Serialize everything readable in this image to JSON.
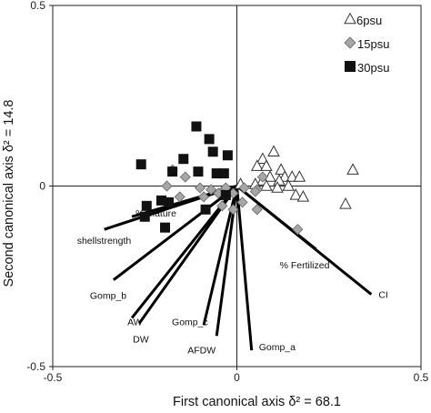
{
  "chart_data": {
    "type": "scatter",
    "xlabel": "First canonical axis  δ² = 68.1",
    "ylabel": "Second canonical axis  δ² = 14.8",
    "xlim": [
      -0.5,
      0.5
    ],
    "ylim": [
      -0.5,
      0.5
    ],
    "x_ticks": [
      -0.5,
      0,
      0.5
    ],
    "y_ticks": [
      -0.5,
      0,
      0.5
    ],
    "x_tick_labels": [
      "-0.5",
      "0",
      "0.5"
    ],
    "y_tick_labels": [
      "-0.5",
      "0",
      "0.5"
    ],
    "grid": false,
    "legend_position": "top-right",
    "series": [
      {
        "name": "6psu",
        "marker": "triangle-open",
        "color": "#ffffff",
        "points": [
          [
            0.1,
            0.095
          ],
          [
            0.07,
            0.075
          ],
          [
            0.055,
            0.055
          ],
          [
            0.08,
            0.055
          ],
          [
            0.09,
            0.025
          ],
          [
            0.12,
            0.045
          ],
          [
            0.13,
            0.025
          ],
          [
            0.15,
            0.025
          ],
          [
            0.17,
            0.025
          ],
          [
            0.07,
            0.015
          ],
          [
            0.115,
            0.015
          ],
          [
            0.01,
            0.005
          ],
          [
            0.05,
            0.005
          ],
          [
            0.08,
            0.0
          ],
          [
            0.14,
            0.0
          ],
          [
            0.11,
            -0.005
          ],
          [
            0.16,
            -0.025
          ],
          [
            0.18,
            -0.03
          ],
          [
            0.315,
            0.045
          ],
          [
            0.295,
            -0.05
          ]
        ]
      },
      {
        "name": "15psu",
        "marker": "diamond",
        "color": "#a6a6a6",
        "points": [
          [
            -0.175,
            0.045
          ],
          [
            -0.14,
            0.025
          ],
          [
            -0.19,
            0.0
          ],
          [
            -0.1,
            -0.005
          ],
          [
            -0.07,
            -0.01
          ],
          [
            -0.04,
            -0.015
          ],
          [
            -0.05,
            -0.02
          ],
          [
            -0.09,
            -0.03
          ],
          [
            -0.155,
            -0.03
          ],
          [
            -0.03,
            -0.005
          ],
          [
            -0.01,
            -0.02
          ],
          [
            0.07,
            0.025
          ],
          [
            0.055,
            -0.01
          ],
          [
            0.05,
            -0.015
          ],
          [
            0.015,
            -0.045
          ],
          [
            -0.04,
            -0.055
          ],
          [
            -0.01,
            -0.065
          ],
          [
            0.055,
            -0.065
          ],
          [
            0.165,
            -0.12
          ],
          [
            0.02,
            -0.005
          ]
        ]
      },
      {
        "name": "30psu",
        "marker": "square",
        "color": "#111111",
        "points": [
          [
            -0.11,
            0.165
          ],
          [
            -0.075,
            0.13
          ],
          [
            -0.145,
            0.075
          ],
          [
            -0.065,
            0.095
          ],
          [
            -0.025,
            0.085
          ],
          [
            -0.26,
            0.06
          ],
          [
            -0.175,
            0.04
          ],
          [
            -0.105,
            0.04
          ],
          [
            -0.055,
            0.035
          ],
          [
            -0.035,
            0.035
          ],
          [
            -0.205,
            -0.04
          ],
          [
            -0.185,
            -0.045
          ],
          [
            -0.245,
            -0.055
          ],
          [
            -0.25,
            -0.085
          ],
          [
            -0.195,
            -0.115
          ],
          [
            -0.085,
            -0.065
          ],
          [
            -0.03,
            -0.025
          ]
        ]
      }
    ],
    "vectors": [
      {
        "label": "% Mature",
        "end": [
          -0.285,
          -0.085
        ]
      },
      {
        "label": "shellstrength",
        "end": [
          -0.36,
          -0.12
        ]
      },
      {
        "label": "Gomp_b",
        "end": [
          -0.335,
          -0.26
        ]
      },
      {
        "label": "AW",
        "end": [
          -0.285,
          -0.365
        ]
      },
      {
        "label": "DW",
        "end": [
          -0.265,
          -0.38
        ]
      },
      {
        "label": "Gomp_c",
        "end": [
          -0.09,
          -0.385
        ]
      },
      {
        "label": "AFDW",
        "end": [
          -0.055,
          -0.415
        ]
      },
      {
        "label": "Gomp_a",
        "end": [
          0.04,
          -0.455
        ]
      },
      {
        "label": "% Fertilized",
        "end": [
          0.215,
          -0.175
        ]
      },
      {
        "label": "CI",
        "end": [
          0.365,
          -0.3
        ]
      }
    ]
  }
}
